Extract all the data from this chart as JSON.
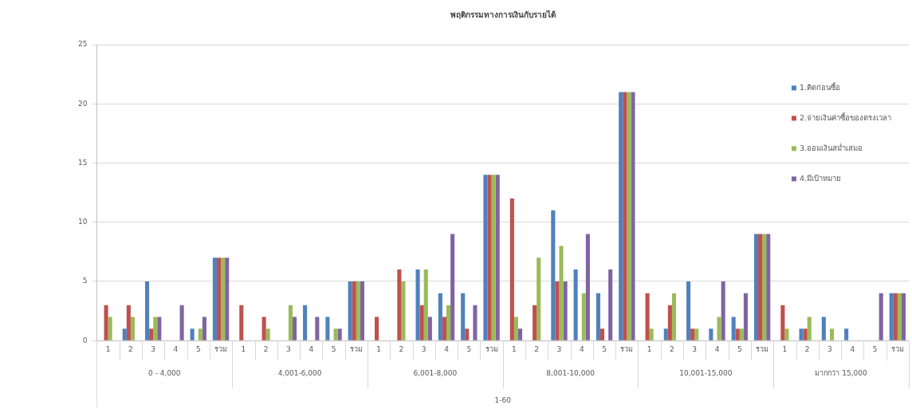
{
  "chart_data": {
    "type": "bar",
    "title": "พฤติกรรมทางการเงินกับรายได้",
    "categories": [
      "1",
      "2",
      "3",
      "4",
      "5",
      "รวม",
      "1",
      "2",
      "3",
      "4",
      "5",
      "รวม",
      "1",
      "2",
      "3",
      "4",
      "5",
      "รวม",
      "1",
      "2",
      "3",
      "4",
      "5",
      "รวม",
      "1",
      "2",
      "3",
      "4",
      "5",
      "รวม",
      "1",
      "2",
      "3",
      "4",
      "5",
      "รวม"
    ],
    "annotations": [
      "0 - 4,000",
      "4,001-6,000",
      "6,001-8,000",
      "8,001-10,000",
      "10,001-15,000",
      "มากกว่า 15,000",
      "1-60"
    ],
    "series": [
      {
        "name": "1.คิดก่อนซื้อ",
        "color": "#4f81bd",
        "values": [
          0,
          1,
          5,
          0,
          1,
          7,
          0,
          0,
          0,
          3,
          2,
          5,
          0,
          0,
          6,
          4,
          4,
          14,
          0,
          0,
          11,
          6,
          4,
          21,
          0,
          1,
          5,
          1,
          2,
          9,
          0,
          1,
          2,
          1,
          0,
          4
        ]
      },
      {
        "name": "2.จ่ายเงินค่าซื้อของตรงเวลา",
        "color": "#c0504d",
        "values": [
          3,
          3,
          1,
          0,
          0,
          7,
          3,
          2,
          0,
          0,
          0,
          5,
          2,
          6,
          3,
          2,
          1,
          14,
          12,
          3,
          5,
          0,
          1,
          21,
          4,
          3,
          1,
          0,
          1,
          9,
          3,
          1,
          0,
          0,
          0,
          4
        ]
      },
      {
        "name": "3.ออมเงินสม่ำเสมอ",
        "color": "#9bbb59",
        "values": [
          2,
          2,
          2,
          0,
          1,
          7,
          0,
          1,
          3,
          0,
          1,
          5,
          0,
          5,
          6,
          3,
          0,
          14,
          2,
          7,
          8,
          4,
          0,
          21,
          1,
          4,
          1,
          2,
          1,
          9,
          1,
          2,
          1,
          0,
          0,
          4
        ]
      },
      {
        "name": "4.มีเป้าหมาย",
        "color": "#8064a2",
        "values": [
          0,
          0,
          2,
          3,
          2,
          7,
          0,
          0,
          2,
          2,
          1,
          5,
          0,
          0,
          2,
          9,
          3,
          14,
          1,
          0,
          5,
          9,
          6,
          21,
          0,
          0,
          0,
          5,
          4,
          9,
          0,
          0,
          0,
          0,
          4,
          4
        ]
      }
    ],
    "ylim": [
      0,
      25
    ],
    "yticks": [
      0,
      5,
      10,
      15,
      20,
      25
    ],
    "grid": "y",
    "legend": "right"
  }
}
